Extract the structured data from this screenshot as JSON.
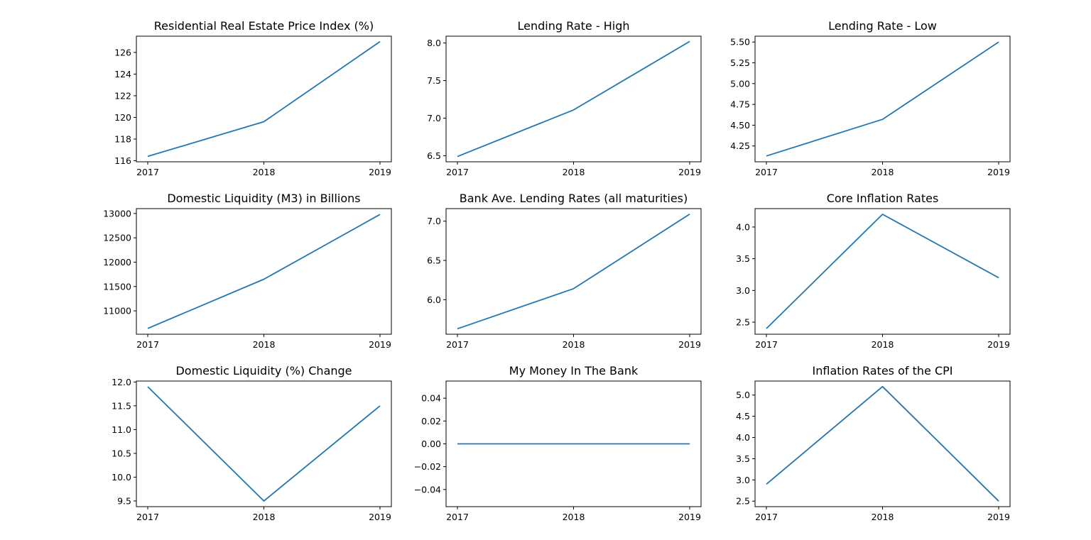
{
  "chart_data": [
    {
      "type": "line",
      "title": "Residential Real Estate Price Index (%)",
      "x": [
        "2017",
        "2018",
        "2019"
      ],
      "values": [
        116.4,
        119.6,
        127.0
      ],
      "ylim": [
        115.9,
        127.5
      ],
      "yticks": [
        116,
        118,
        120,
        122,
        124,
        126
      ],
      "ytick_labels": [
        "116",
        "118",
        "120",
        "122",
        "124",
        "126"
      ],
      "color": "#1f77b4"
    },
    {
      "type": "line",
      "title": "Lending Rate - High",
      "x": [
        "2017",
        "2018",
        "2019"
      ],
      "values": [
        6.49,
        7.11,
        8.02
      ],
      "ylim": [
        6.42,
        8.09
      ],
      "yticks": [
        6.5,
        7.0,
        7.5,
        8.0
      ],
      "ytick_labels": [
        "6.5",
        "7.0",
        "7.5",
        "8.0"
      ],
      "color": "#1f77b4"
    },
    {
      "type": "line",
      "title": "Lending Rate - Low",
      "x": [
        "2017",
        "2018",
        "2019"
      ],
      "values": [
        4.13,
        4.57,
        5.5
      ],
      "ylim": [
        4.06,
        5.57
      ],
      "yticks": [
        4.25,
        4.5,
        4.75,
        5.0,
        5.25,
        5.5
      ],
      "ytick_labels": [
        "4.25",
        "4.50",
        "4.75",
        "5.00",
        "5.25",
        "5.50"
      ],
      "color": "#1f77b4"
    },
    {
      "type": "line",
      "title": "Domestic Liquidity (M3) in Billions",
      "x": [
        "2017",
        "2018",
        "2019"
      ],
      "values": [
        10640,
        11650,
        12980
      ],
      "ylim": [
        10520,
        13100
      ],
      "yticks": [
        11000,
        11500,
        12000,
        12500,
        13000
      ],
      "ytick_labels": [
        "11000",
        "11500",
        "12000",
        "12500",
        "13000"
      ],
      "color": "#1f77b4"
    },
    {
      "type": "line",
      "title": "Bank Ave. Lending Rates (all maturities)",
      "x": [
        "2017",
        "2018",
        "2019"
      ],
      "values": [
        5.63,
        6.14,
        7.09
      ],
      "ylim": [
        5.56,
        7.16
      ],
      "yticks": [
        6.0,
        6.5,
        7.0
      ],
      "ytick_labels": [
        "6.0",
        "6.5",
        "7.0"
      ],
      "color": "#1f77b4"
    },
    {
      "type": "line",
      "title": "Core Inflation Rates",
      "x": [
        "2017",
        "2018",
        "2019"
      ],
      "values": [
        2.4,
        4.2,
        3.2
      ],
      "ylim": [
        2.31,
        4.29
      ],
      "yticks": [
        2.5,
        3.0,
        3.5,
        4.0
      ],
      "ytick_labels": [
        "2.5",
        "3.0",
        "3.5",
        "4.0"
      ],
      "color": "#1f77b4"
    },
    {
      "type": "line",
      "title": "Domestic Liquidity (%) Change",
      "x": [
        "2017",
        "2018",
        "2019"
      ],
      "values": [
        11.9,
        9.5,
        11.5
      ],
      "ylim": [
        9.38,
        12.02
      ],
      "yticks": [
        9.5,
        10.0,
        10.5,
        11.0,
        11.5,
        12.0
      ],
      "ytick_labels": [
        "9.5",
        "10.0",
        "10.5",
        "11.0",
        "11.5",
        "12.0"
      ],
      "color": "#1f77b4"
    },
    {
      "type": "line",
      "title": "My Money In The Bank",
      "x": [
        "2017",
        "2018",
        "2019"
      ],
      "values": [
        0,
        0,
        0
      ],
      "ylim": [
        -0.055,
        0.055
      ],
      "yticks": [
        -0.04,
        -0.02,
        0.0,
        0.02,
        0.04
      ],
      "ytick_labels": [
        "−0.04",
        "−0.02",
        "0.00",
        "0.02",
        "0.04"
      ],
      "color": "#1f77b4"
    },
    {
      "type": "line",
      "title": "Inflation Rates of the CPI",
      "x": [
        "2017",
        "2018",
        "2019"
      ],
      "values": [
        2.9,
        5.2,
        2.5
      ],
      "ylim": [
        2.37,
        5.33
      ],
      "yticks": [
        2.5,
        3.0,
        3.5,
        4.0,
        4.5,
        5.0
      ],
      "ytick_labels": [
        "2.5",
        "3.0",
        "3.5",
        "4.0",
        "4.5",
        "5.0"
      ],
      "color": "#1f77b4"
    }
  ]
}
